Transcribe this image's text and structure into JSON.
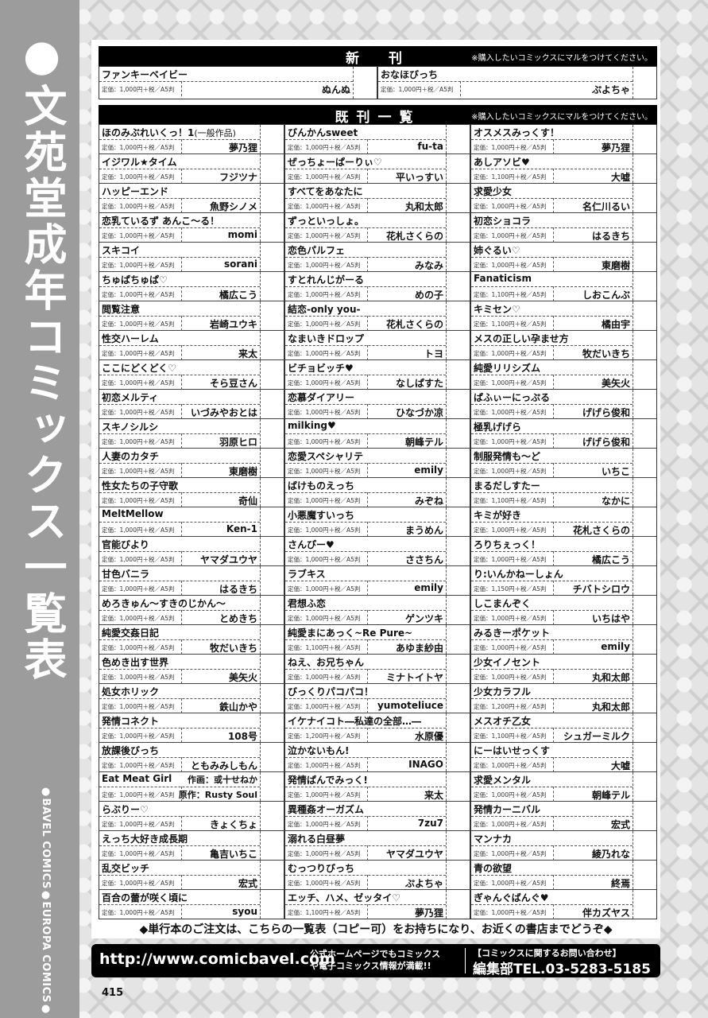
{
  "sidebar": {
    "title": "●文苑堂成年コミックス一覧表",
    "labels": "●BAVEL COMICS●EUROPA COMICS●"
  },
  "new_releases": {
    "heading": "新　刊",
    "note": "※購入したいコミックスにマルをつけてください。",
    "items": [
      {
        "title": "ファンキーベイビー",
        "price": "定価：1,000円＋税／A5判",
        "author": "ぬんぬ"
      },
      {
        "title": "おなほびっち",
        "price": "定価：1,000円＋税／A5判",
        "author": "ぷよちゃ"
      }
    ]
  },
  "catalog": {
    "heading": "既刊一覧",
    "note": "※購入したいコミックスにマルをつけてください。",
    "columns": [
      {
        "items": [
          {
            "title": "ほのみぶれいくっ！1",
            "note": "(一般作品)",
            "price": "定価：1,000円＋税／A5判",
            "author": "夢乃狸"
          },
          {
            "title": "イジワル★タイム",
            "price": "定価：1,000円＋税／A5判",
            "author": "フジツナ"
          },
          {
            "title": "ハッピーエンド",
            "price": "定価：1,000円＋税／A5判",
            "author": "魚野シノメ"
          },
          {
            "title": "恋乳ているず あんこ〜る！",
            "price": "定価：1,000円＋税／A5判",
            "author": "momi"
          },
          {
            "title": "スキコイ",
            "price": "定価：1,000円＋税／A5判",
            "author": "sorani"
          },
          {
            "title": "ちゅぱちゅぱ♡",
            "price": "定価：1,000円＋税／A5判",
            "author": "橘広こう"
          },
          {
            "title": "閲覧注意",
            "price": "定価：1,000円＋税／A5判",
            "author": "岩崎ユウキ"
          },
          {
            "title": "性交ハーレム",
            "price": "定価：1,000円＋税／A5判",
            "author": "来太"
          },
          {
            "title": "ここにどくどく♡",
            "price": "定価：1,000円＋税／A5判",
            "author": "そら豆さん"
          },
          {
            "title": "初恋メルティ",
            "price": "定価：1,000円＋税／A5判",
            "author": "いづみやおとは"
          },
          {
            "title": "スキノシルシ",
            "price": "定価：1,000円＋税／A5判",
            "author": "羽原ヒロ"
          },
          {
            "title": "人妻のカタチ",
            "price": "定価：1,000円＋税／A5判",
            "author": "東磨樹"
          },
          {
            "title": "性女たちの子守歌",
            "price": "定価：1,000円＋税／A5判",
            "author": "奇仙"
          },
          {
            "title": "MeltMellow",
            "price": "定価：1,000円＋税／A5判",
            "author": "Ken-1"
          },
          {
            "title": "官能びより",
            "price": "定価：1,000円＋税／A5判",
            "author": "ヤマダユウヤ"
          },
          {
            "title": "甘色バニラ",
            "price": "定価：1,000円＋税／A5判",
            "author": "はるきち"
          },
          {
            "title": "めろきゅん〜すきのじかん〜",
            "price": "定価：1,000円＋税／A5判",
            "author": "とめきち"
          },
          {
            "title": "純愛交姦日記",
            "price": "定価：1,000円＋税／A5判",
            "author": "牧だいきち"
          },
          {
            "title": "色めき出す世界",
            "price": "定価：1,000円＋税／A5判",
            "author": "美矢火"
          },
          {
            "title": "処女ホリック",
            "price": "定価：1,000円＋税／A5判",
            "author": "鉄山かや"
          },
          {
            "title": "発情コネクト",
            "price": "定価：1,000円＋税／A5判",
            "author": "108号"
          },
          {
            "title": "放課後びっち",
            "price": "定価：1,000円＋税／A5判",
            "author": "ともみみしもん"
          },
          {
            "title": "Eat Meat Girl",
            "price": "定価：1,000円＋税／A5判",
            "artist": "作画：或十せねか",
            "writer": "原作：Rusty Soul"
          },
          {
            "title": "らぶりー♡",
            "price": "定価：1,000円＋税／A5判",
            "author": "きょくちょ"
          },
          {
            "title": "えっち大好き成長期",
            "price": "定価：1,000円＋税／A5判",
            "author": "亀吉いちこ"
          },
          {
            "title": "乱交ビッチ",
            "price": "定価：1,000円＋税／A5判",
            "author": "宏式"
          },
          {
            "title": "百合の蕾が咲く頃に",
            "price": "定価：1,000円＋税／A5判",
            "author": "syou"
          }
        ]
      },
      {
        "items": [
          {
            "title": "びんかんsweet",
            "price": "定価：1,000円＋税／A5判",
            "author": "fu-ta"
          },
          {
            "title": "ぜっちょーぱーりぃ♡",
            "price": "定価：1,000円＋税／A5判",
            "author": "平いっすい"
          },
          {
            "title": "すべてをあなたに",
            "price": "定価：1,000円＋税／A5判",
            "author": "丸和太郎"
          },
          {
            "title": "ずっといっしょ。",
            "price": "定価：1,000円＋税／A5判",
            "author": "花札さくらの"
          },
          {
            "title": "恋色パルフェ",
            "price": "定価：1,000円＋税／A5判",
            "author": "みなみ"
          },
          {
            "title": "すとれんじがーる",
            "price": "定価：1,000円＋税／A5判",
            "author": "めの子"
          },
          {
            "title": "結恋-only you-",
            "price": "定価：1,000円＋税／A5判",
            "author": "花札さくらの"
          },
          {
            "title": "なまいきドロップ",
            "price": "定価：1,000円＋税／A5判",
            "author": "トヨ"
          },
          {
            "title": "ビチョビッチ♥",
            "price": "定価：1,000円＋税／A5判",
            "author": "なしぱすた"
          },
          {
            "title": "恋慕ダイアリー",
            "price": "定価：1,000円＋税／A5判",
            "author": "ひなづか凉"
          },
          {
            "title": "milking♥",
            "price": "定価：1,000円＋税／A5判",
            "author": "朝峰テル"
          },
          {
            "title": "恋愛スペシャリテ",
            "price": "定価：1,000円＋税／A5判",
            "author": "emily"
          },
          {
            "title": "ばけものえっち",
            "price": "定価：1,000円＋税／A5判",
            "author": "みぞね"
          },
          {
            "title": "小悪魔すいっち",
            "price": "定価：1,000円＋税／A5判",
            "author": "まうめん"
          },
          {
            "title": "さんぴー♥",
            "price": "定価：1,000円＋税／A5判",
            "author": "ささちん"
          },
          {
            "title": "ラブキス",
            "price": "定価：1,000円＋税／A5判",
            "author": "emily"
          },
          {
            "title": "君想ふ恋",
            "price": "定価：1,000円＋税／A5判",
            "author": "ゲンツキ"
          },
          {
            "title": "純愛まにあっく~Re Pure~",
            "price": "定価：1,100円＋税／A5判",
            "author": "あゆま紗由"
          },
          {
            "title": "ねえ、お兄ちゃん",
            "price": "定価：1,000円＋税／A5判",
            "author": "ミナトイトヤ"
          },
          {
            "title": "びっくりパコパコ！",
            "price": "定価：1,000円＋税／A5判",
            "author": "yumoteliuce"
          },
          {
            "title": "イケナイコト―私達の全部…―",
            "price": "定価：1,200円＋税／A5判",
            "author": "水原優"
          },
          {
            "title": "泣かないもん!",
            "price": "定価：1,000円＋税／A5判",
            "author": "INAGO"
          },
          {
            "title": "発情ぱんでみっく!",
            "price": "定価：1,000円＋税／A5判",
            "author": "来太"
          },
          {
            "title": "異種姦オーガズム",
            "price": "定価：1,000円＋税／A5判",
            "author": "7zu7"
          },
          {
            "title": "溺れる白昼夢",
            "price": "定価：1,000円＋税／A5判",
            "author": "ヤマダユウヤ"
          },
          {
            "title": "むっつりびっち",
            "price": "定価：1,000円＋税／A5判",
            "author": "ぷよちゃ"
          },
          {
            "title": "エッチ、ハメ、ゼッタイ♡",
            "price": "定価：1,100円＋税／A5判",
            "author": "夢乃狸"
          }
        ]
      },
      {
        "items": [
          {
            "title": "オスメスみっくす！",
            "price": "定価：1,000円＋税／A5判",
            "author": "夢乃狸"
          },
          {
            "title": "あしアソビ♥",
            "price": "定価：1,100円＋税／A5判",
            "author": "大嘘"
          },
          {
            "title": "求愛少女",
            "price": "定価：1,000円＋税／A5判",
            "author": "名仁川るい"
          },
          {
            "title": "初恋ショコラ",
            "price": "定価：1,000円＋税／A5判",
            "author": "はるきち"
          },
          {
            "title": "姉ぐるい♡",
            "price": "定価：1,000円＋税／A5判",
            "author": "東磨樹"
          },
          {
            "title": "Fanaticism",
            "price": "定価：1,100円＋税／A5判",
            "author": "しおこんぶ"
          },
          {
            "title": "キミセン♡",
            "price": "定価：1,100円＋税／A5判",
            "author": "橘由宇"
          },
          {
            "title": "メスの正しい孕ませ方",
            "price": "定価：1,000円＋税／A5判",
            "author": "牧だいきち"
          },
          {
            "title": "純愛リリシズム",
            "price": "定価：1,000円＋税／A5判",
            "author": "美矢火"
          },
          {
            "title": "ぱふぃーにっぷる",
            "price": "定価：1,000円＋税／A5判",
            "author": "げげら俊和"
          },
          {
            "title": "極乳げげら",
            "price": "定価：1,000円＋税／A5判",
            "author": "げげら俊和"
          },
          {
            "title": "制服発情も〜ど",
            "price": "定価：1,000円＋税／A5判",
            "author": "いちこ"
          },
          {
            "title": "まるだしすたー",
            "price": "定価：1,100円＋税／A5判",
            "author": "なかに"
          },
          {
            "title": "キミが好き",
            "price": "定価：1,000円＋税／A5判",
            "author": "花札さくらの"
          },
          {
            "title": "ろりちぇっく！",
            "price": "定価：1,000円＋税／A5判",
            "author": "橘広こう"
          },
          {
            "title": "り:いんかねーしょん",
            "price": "定価：1,150円＋税／A5判",
            "author": "チバトシロウ"
          },
          {
            "title": "しこまんぞく",
            "price": "定価：1,000円＋税／A5判",
            "author": "いちはや"
          },
          {
            "title": "みるきーポケット",
            "price": "定価：1,000円＋税／A5判",
            "author": "emily"
          },
          {
            "title": "少女イノセント",
            "price": "定価：1,000円＋税／A5判",
            "author": "丸和太郎"
          },
          {
            "title": "少女カラフル",
            "price": "定価：1,200円＋税／A5判",
            "author": "丸和太郎"
          },
          {
            "title": "メスオチ乙女",
            "price": "定価：1,100円＋税／A5判",
            "author": "シュガーミルク"
          },
          {
            "title": "にーはいせっくす",
            "price": "定価：1,000円＋税／A5判",
            "author": "大嘘"
          },
          {
            "title": "求愛メンタル",
            "price": "定価：1,000円＋税／A5判",
            "author": "朝峰テル"
          },
          {
            "title": "発情カーニバル",
            "price": "定価：1,000円＋税／A5判",
            "author": "宏式"
          },
          {
            "title": "マンナカ",
            "price": "定価：1,000円＋税／A5判",
            "author": "綾乃れな"
          },
          {
            "title": "青の欲望",
            "price": "定価：1,000円＋税／A5判",
            "author": "終焉"
          },
          {
            "title": "ぎゃんぐばんぐ♥",
            "price": "定価：1,000円＋税／A5判",
            "author": "伴カズヤス"
          }
        ]
      }
    ]
  },
  "order_note": "◆単行本のご注文は、こちらの一覧表（コピー可）をお持ちになり、お近くの書店までどうぞ◆",
  "footer": {
    "url": "http://www.comicbavel.com",
    "promo_line1": "公式ホームページでもコミックス",
    "promo_line2": "や電子コミックス情報が満載!!",
    "contact": "【コミックスに関するお問い合わせ】",
    "tel": "編集部TEL.03-5283-5185"
  },
  "page_number": "415"
}
